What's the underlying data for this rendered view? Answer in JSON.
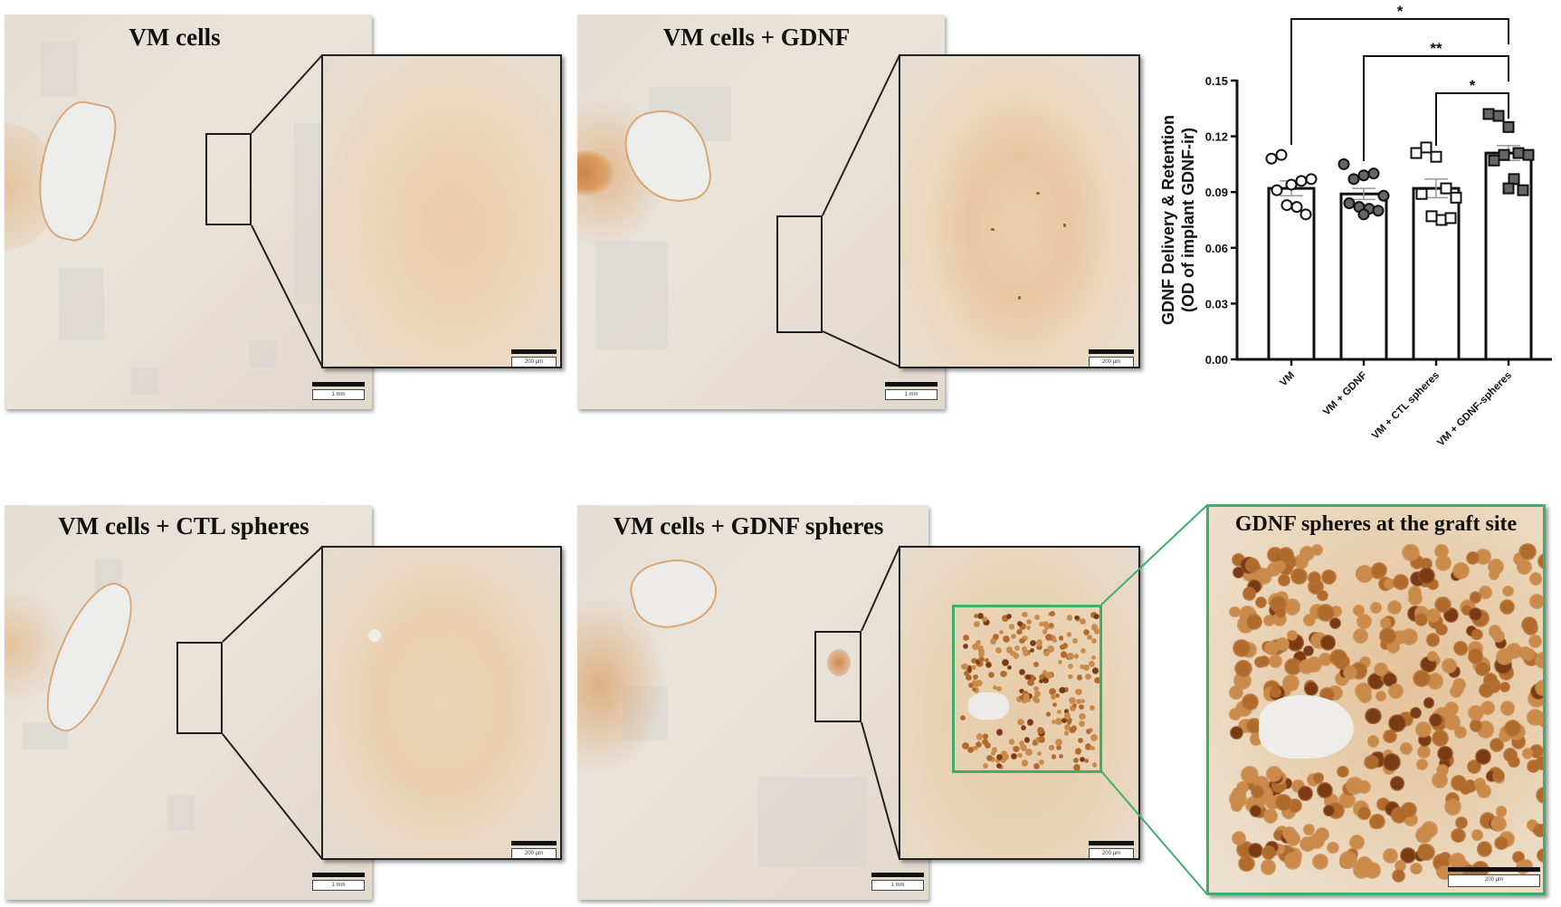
{
  "panels": {
    "vm_cells": {
      "title": "VM cells",
      "scale_overview": "1 mm",
      "scale_inset": "200 µm"
    },
    "vm_gdnf": {
      "title": "VM cells + GDNF",
      "scale_overview": "1 mm",
      "scale_inset": "200 µm"
    },
    "vm_ctl_spheres": {
      "title": "VM cells + CTL spheres",
      "scale_overview": "1 mm",
      "scale_inset": "200 µm"
    },
    "vm_gdnf_spheres": {
      "title": "VM cells + GDNF spheres",
      "scale_overview": "1 mm",
      "scale_inset": "200 µm"
    },
    "graft_site": {
      "title": "GDNF spheres at the graft site",
      "scale": "200 µm"
    }
  },
  "colors": {
    "highlight_box": "#3fae6a",
    "stain": "#c98a4a",
    "stain_dark": "#8a4a1c"
  },
  "chart_data": {
    "type": "bar",
    "title": "",
    "xlabel": "",
    "ylabel": "GDNF Delivery & Retention (OD of implant GDNF-ir)",
    "ylabel_line1": "GDNF Delivery & Retention",
    "ylabel_line2": "(OD of implant GDNF-ir)",
    "ylim": [
      0,
      0.15
    ],
    "yticks": [
      "0.00",
      "0.03",
      "0.06",
      "0.09",
      "0.12",
      "0.15"
    ],
    "categories": [
      "VM",
      "VM + GDNF",
      "VM + CTL spheres",
      "VM + GDNF-spheres"
    ],
    "values": [
      0.092,
      0.089,
      0.092,
      0.111
    ],
    "sem": [
      0.004,
      0.003,
      0.005,
      0.004
    ],
    "points": [
      [
        0.108,
        0.11,
        0.094,
        0.096,
        0.097,
        0.091,
        0.083,
        0.082,
        0.078
      ],
      [
        0.105,
        0.097,
        0.099,
        0.1,
        0.088,
        0.084,
        0.082,
        0.081,
        0.08,
        0.078
      ],
      [
        0.111,
        0.114,
        0.109,
        0.092,
        0.087,
        0.089,
        0.077,
        0.075,
        0.076
      ],
      [
        0.132,
        0.131,
        0.125,
        0.111,
        0.11,
        0.107,
        0.11,
        0.097,
        0.091,
        0.092
      ]
    ],
    "markers": [
      "open-circle",
      "filled-circle",
      "open-square",
      "filled-square"
    ],
    "significance": [
      {
        "from": "VM",
        "to": "VM + GDNF-spheres",
        "label": "*"
      },
      {
        "from": "VM + GDNF",
        "to": "VM + GDNF-spheres",
        "label": "**"
      },
      {
        "from": "VM + CTL spheres",
        "to": "VM + GDNF-spheres",
        "label": "*"
      }
    ],
    "grid": false,
    "legend": null
  }
}
